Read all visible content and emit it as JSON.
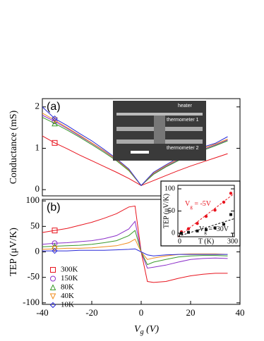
{
  "chart_data": [
    {
      "type": "line",
      "panel_label": "(a)",
      "y_label": "Conductance (mS)",
      "x": [
        -40,
        -35,
        -30,
        -25,
        -20,
        -15,
        -10,
        -5,
        0,
        5,
        10,
        15,
        20,
        25,
        30,
        35
      ],
      "xlim": [
        -40,
        40
      ],
      "ylim": [
        -0.15,
        2.2
      ],
      "yticks": [
        0,
        1,
        2
      ],
      "series": [
        {
          "color": "#e8141e",
          "marker": "square",
          "values": [
            1.3,
            1.13,
            0.99,
            0.84,
            0.7,
            0.56,
            0.42,
            0.27,
            0.1,
            0.22,
            0.34,
            0.46,
            0.57,
            0.67,
            0.77,
            0.87
          ]
        },
        {
          "color": "#8b2fc9",
          "marker": "circle",
          "values": [
            1.8,
            1.65,
            1.48,
            1.3,
            1.12,
            0.93,
            0.72,
            0.48,
            0.1,
            0.38,
            0.56,
            0.72,
            0.85,
            0.97,
            1.08,
            1.2
          ]
        },
        {
          "color": "#3a9a2a",
          "marker": "triangle",
          "values": [
            1.75,
            1.6,
            1.44,
            1.27,
            1.09,
            0.9,
            0.7,
            0.46,
            0.1,
            0.37,
            0.55,
            0.7,
            0.83,
            0.95,
            1.06,
            1.18
          ]
        },
        {
          "color": "#f08c1e",
          "marker": "triangle-down",
          "values": [
            1.85,
            1.68,
            1.5,
            1.32,
            1.13,
            0.94,
            0.73,
            0.48,
            0.1,
            0.4,
            0.58,
            0.74,
            0.87,
            1.0,
            1.1,
            1.22
          ]
        },
        {
          "color": "#2a2ad8",
          "marker": "diamond",
          "values": [
            2.0,
            1.72,
            1.55,
            1.36,
            1.18,
            0.97,
            0.75,
            0.5,
            0.1,
            0.42,
            0.6,
            0.77,
            0.9,
            1.03,
            1.12,
            1.28
          ]
        }
      ]
    },
    {
      "type": "line",
      "panel_label": "(b)",
      "y_label": "TEP (μV/K)",
      "x_label": [
        "V",
        "g",
        " (V)"
      ],
      "x": [
        -40,
        -35,
        -30,
        -25,
        -20,
        -15,
        -10,
        -5,
        -2.5,
        0,
        2.5,
        5,
        10,
        15,
        20,
        25,
        30,
        35
      ],
      "xlim": [
        -40,
        40
      ],
      "xticks": [
        -40,
        -20,
        0,
        20,
        40
      ],
      "ylim": [
        -103,
        103
      ],
      "yticks": [
        -100,
        -50,
        0,
        50,
        100
      ],
      "series": [
        {
          "name": "300K",
          "color": "#e8141e",
          "marker": "square",
          "values": [
            38,
            42,
            46,
            52,
            58,
            66,
            75,
            88,
            90,
            0,
            -58,
            -60,
            -58,
            -52,
            -47,
            -44,
            -42,
            -42
          ]
        },
        {
          "name": "150K",
          "color": "#8b2fc9",
          "marker": "circle",
          "values": [
            15,
            17,
            18,
            20,
            22,
            26,
            32,
            45,
            60,
            0,
            -32,
            -30,
            -26,
            -20,
            -15,
            -13,
            -12,
            -13
          ]
        },
        {
          "name": "80K",
          "color": "#3a9a2a",
          "marker": "triangle",
          "values": [
            10,
            11,
            12,
            13,
            15,
            18,
            22,
            32,
            42,
            0,
            -25,
            -20,
            -15,
            -10,
            -8,
            -7,
            -7,
            -8
          ]
        },
        {
          "name": "40K",
          "color": "#f08c1e",
          "marker": "triangle-down",
          "values": [
            5,
            6,
            7,
            7,
            8,
            10,
            12,
            18,
            25,
            0,
            -15,
            -12,
            -8,
            -5,
            -4,
            -4,
            -4,
            -5
          ]
        },
        {
          "name": "10K",
          "color": "#2a2ad8",
          "marker": "diamond",
          "values": [
            2,
            2,
            2,
            3,
            3,
            3,
            4,
            5,
            6,
            0,
            -6,
            -8,
            -6,
            -5,
            -5,
            -5,
            -5,
            -5
          ]
        }
      ]
    },
    {
      "type": "scatter",
      "y_label": "TEP (μV/K)",
      "x_label": "T (K)",
      "xlim": [
        -10,
        310
      ],
      "xticks": [
        0,
        300
      ],
      "ylim": [
        -8,
        108
      ],
      "yticks": [
        0,
        50,
        100
      ],
      "series": [
        {
          "color": "#e8141e",
          "annotation": [
            "V",
            "g",
            " = -5V"
          ],
          "x": [
            10,
            50,
            100,
            150,
            200,
            250,
            290
          ],
          "values": [
            3,
            10,
            22,
            38,
            52,
            70,
            90
          ]
        },
        {
          "color": "#111111",
          "annotation": [
            "V",
            "g",
            " = -30V"
          ],
          "x": [
            10,
            50,
            100,
            150,
            200,
            250,
            290
          ],
          "values": [
            0,
            2,
            5,
            8,
            12,
            20,
            42
          ]
        }
      ]
    }
  ],
  "sem_image": {
    "labels": [
      "heater",
      "thermometer 1",
      "thermometer 2"
    ]
  }
}
